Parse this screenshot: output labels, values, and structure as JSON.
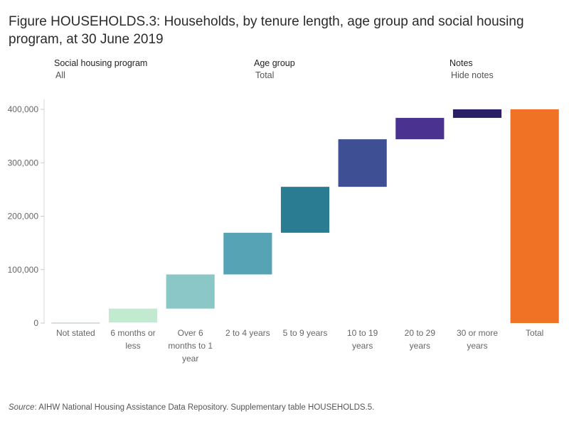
{
  "title": "Figure HOUSEHOLDS.3: Households, by tenure length, age group and social housing program, at 30 June 2019",
  "filters": [
    {
      "label": "Social housing program",
      "value": "All"
    },
    {
      "label": "Age group",
      "value": "Total"
    },
    {
      "label": "Notes",
      "value": "Hide notes"
    }
  ],
  "source": {
    "prefix": "Source",
    "text": ": AIHW National Housing Assistance Data Repository. Supplementary table HOUSEHOLDS.5."
  },
  "chart_data": {
    "type": "bar",
    "subtype": "waterfall",
    "title": "",
    "xlabel": "",
    "ylabel": "",
    "ylim": [
      0,
      400000
    ],
    "yticks": [
      0,
      100000,
      200000,
      300000,
      400000
    ],
    "ytick_labels": [
      "0",
      "100,000",
      "200,000",
      "300,000",
      "400,000"
    ],
    "grid": false,
    "categories": [
      [
        "Not stated"
      ],
      [
        "6 months or",
        "less"
      ],
      [
        "Over 6",
        "months to 1",
        "year"
      ],
      [
        "2 to 4 years"
      ],
      [
        "5 to 9 years"
      ],
      [
        "10 to 19",
        "years"
      ],
      [
        "20 to 29",
        "years"
      ],
      [
        "30 or more",
        "years"
      ],
      [
        "Total"
      ]
    ],
    "bars": [
      {
        "start": 0,
        "end": 1000,
        "color": "#c9d3d3"
      },
      {
        "start": 1000,
        "end": 27000,
        "color": "#c1ead1"
      },
      {
        "start": 27000,
        "end": 91000,
        "color": "#8cc7c7"
      },
      {
        "start": 91000,
        "end": 169000,
        "color": "#56a3b5"
      },
      {
        "start": 169000,
        "end": 255000,
        "color": "#2a7c92"
      },
      {
        "start": 255000,
        "end": 344000,
        "color": "#3e4f94"
      },
      {
        "start": 344000,
        "end": 384000,
        "color": "#4a3290"
      },
      {
        "start": 384000,
        "end": 400000,
        "color": "#2b2066"
      },
      {
        "start": 0,
        "end": 400000,
        "color": "#f07225"
      }
    ]
  }
}
